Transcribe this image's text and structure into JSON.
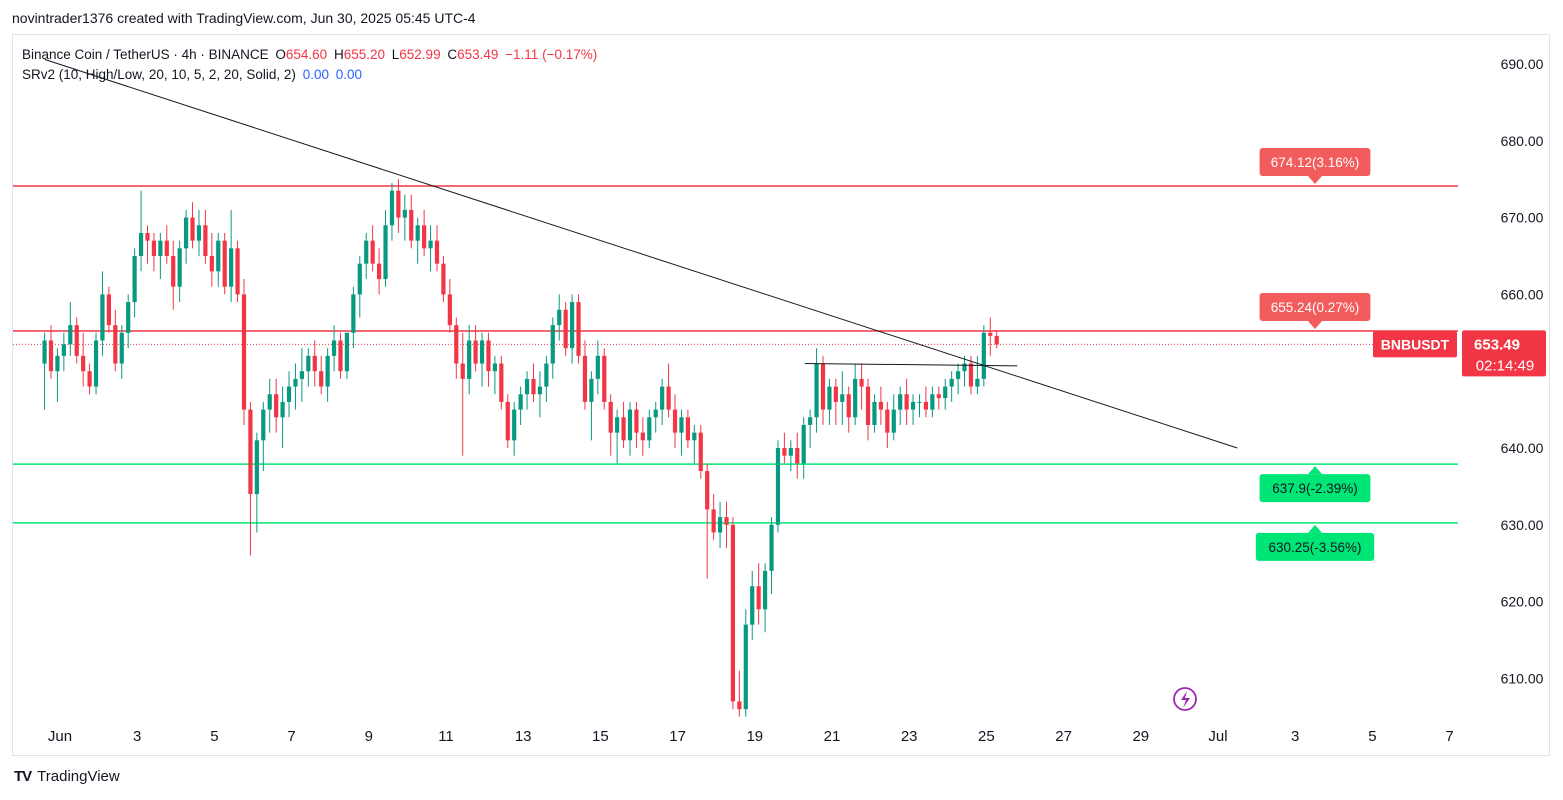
{
  "header": {
    "text": "novintrader1376 created with TradingView.com, Jun 30, 2025 05:45 UTC-4"
  },
  "legend": {
    "pair": "Binance Coin / TetherUS · 4h · BINANCE",
    "o_label": "O",
    "o": "654.60",
    "h_label": "H",
    "h": "655.20",
    "l_label": "L",
    "l": "652.99",
    "c_label": "C",
    "c": "653.49",
    "change": "−1.11 (−0.17%)",
    "indicator": "SRv2 (10, High/Low, 20, 10, 5, 2, 20, Solid, 2)",
    "ind_v1": "0.00",
    "ind_v2": "0.00"
  },
  "footer": {
    "brand": "TradingView",
    "logo_text": "TV"
  },
  "colors": {
    "up": "#089981",
    "down": "#f23645",
    "resistance": "#f23645",
    "support": "#00e676",
    "trendline": "#131722"
  },
  "chart_data": {
    "type": "candlestick",
    "symbol": "BNBUSDT",
    "timeframe": "4h",
    "ylim": [
      604,
      694
    ],
    "y_ticks": [
      "690.00",
      "680.00",
      "670.00",
      "660.00",
      "650.00",
      "640.00",
      "630.00",
      "620.00",
      "610.00"
    ],
    "x_ticks": [
      {
        "label": "Jun",
        "day": 1
      },
      {
        "label": "3",
        "day": 3
      },
      {
        "label": "5",
        "day": 5
      },
      {
        "label": "7",
        "day": 7
      },
      {
        "label": "9",
        "day": 9
      },
      {
        "label": "11",
        "day": 11
      },
      {
        "label": "13",
        "day": 13
      },
      {
        "label": "15",
        "day": 15
      },
      {
        "label": "17",
        "day": 17
      },
      {
        "label": "19",
        "day": 19
      },
      {
        "label": "21",
        "day": 21
      },
      {
        "label": "23",
        "day": 23
      },
      {
        "label": "25",
        "day": 25
      },
      {
        "label": "27",
        "day": 27
      },
      {
        "label": "29",
        "day": 29
      },
      {
        "label": "Jul",
        "day": 31
      },
      {
        "label": "3",
        "day": 33
      },
      {
        "label": "5",
        "day": 35
      },
      {
        "label": "7",
        "day": 37
      }
    ],
    "start_day": 0.6,
    "bars_per_day": 6,
    "ohlc": [
      [
        651.0,
        655.0,
        645.0,
        654.0
      ],
      [
        654.0,
        656.0,
        649.0,
        650.0
      ],
      [
        650.0,
        653.0,
        646.0,
        652.0
      ],
      [
        652.0,
        655.0,
        650.0,
        653.5
      ],
      [
        653.5,
        659.0,
        652.0,
        656.0
      ],
      [
        656.0,
        657.0,
        651.0,
        652.0
      ],
      [
        652.0,
        655.0,
        648.0,
        650.0
      ],
      [
        650.0,
        651.0,
        647.0,
        648.0
      ],
      [
        648.0,
        655.0,
        647.0,
        654.0
      ],
      [
        654.0,
        663.0,
        652.0,
        660.0
      ],
      [
        660.0,
        661.0,
        655.0,
        656.0
      ],
      [
        656.0,
        658.0,
        650.0,
        651.0
      ],
      [
        651.0,
        656.0,
        649.0,
        655.0
      ],
      [
        655.0,
        660.0,
        653.0,
        659.0
      ],
      [
        659.0,
        666.0,
        657.0,
        665.0
      ],
      [
        665.0,
        673.5,
        663.0,
        668.0
      ],
      [
        668.0,
        669.0,
        664.0,
        667.0
      ],
      [
        667.0,
        668.0,
        663.0,
        665.0
      ],
      [
        665.0,
        668.0,
        662.0,
        667.0
      ],
      [
        667.0,
        669.0,
        664.0,
        665.0
      ],
      [
        665.0,
        667.0,
        658.0,
        661.0
      ],
      [
        661.0,
        667.0,
        659.0,
        666.0
      ],
      [
        666.0,
        671.0,
        664.0,
        670.0
      ],
      [
        670.0,
        672.0,
        666.0,
        667.0
      ],
      [
        667.0,
        671.0,
        665.0,
        669.0
      ],
      [
        669.0,
        671.0,
        664.0,
        665.0
      ],
      [
        665.0,
        668.0,
        661.0,
        663.0
      ],
      [
        663.0,
        668.0,
        661.0,
        667.0
      ],
      [
        667.0,
        668.0,
        660.0,
        661.0
      ],
      [
        661.0,
        671.0,
        659.0,
        666.0
      ],
      [
        666.0,
        667.0,
        659.0,
        660.0
      ],
      [
        660.0,
        662.0,
        643.0,
        645.0
      ],
      [
        645.0,
        646.0,
        626.0,
        634.0
      ],
      [
        634.0,
        642.0,
        629.0,
        641.0
      ],
      [
        641.0,
        646.0,
        637.0,
        645.0
      ],
      [
        645.0,
        649.0,
        642.0,
        647.0
      ],
      [
        647.0,
        649.0,
        642.0,
        644.0
      ],
      [
        644.0,
        648.0,
        640.0,
        646.0
      ],
      [
        646.0,
        650.0,
        644.0,
        648.0
      ],
      [
        648.0,
        651.0,
        645.0,
        649.0
      ],
      [
        649.0,
        653.0,
        646.0,
        650.0
      ],
      [
        650.0,
        653.0,
        648.0,
        652.0
      ],
      [
        652.0,
        654.0,
        648.0,
        650.0
      ],
      [
        650.0,
        652.0,
        647.0,
        648.0
      ],
      [
        648.0,
        653.0,
        646.0,
        652.0
      ],
      [
        652.0,
        656.0,
        650.0,
        654.0
      ],
      [
        654.0,
        655.0,
        649.0,
        650.0
      ],
      [
        650.0,
        655.0,
        649.0,
        655.0
      ],
      [
        655.0,
        661.0,
        653.0,
        660.0
      ],
      [
        660.0,
        665.0,
        657.0,
        664.0
      ],
      [
        664.0,
        668.0,
        662.0,
        667.0
      ],
      [
        667.0,
        669.0,
        663.0,
        664.0
      ],
      [
        664.0,
        666.0,
        660.0,
        662.0
      ],
      [
        662.0,
        671.0,
        661.0,
        669.0
      ],
      [
        669.0,
        674.5,
        667.0,
        673.5
      ],
      [
        673.5,
        675.0,
        668.0,
        670.0
      ],
      [
        670.0,
        673.0,
        667.0,
        671.0
      ],
      [
        671.0,
        673.0,
        666.0,
        667.0
      ],
      [
        667.0,
        670.0,
        664.0,
        669.0
      ],
      [
        669.0,
        671.0,
        665.0,
        666.0
      ],
      [
        666.0,
        669.0,
        663.0,
        667.0
      ],
      [
        667.0,
        669.0,
        663.0,
        664.0
      ],
      [
        664.0,
        665.0,
        659.0,
        660.0
      ],
      [
        660.0,
        662.0,
        655.0,
        656.0
      ],
      [
        656.0,
        657.0,
        649.0,
        651.0
      ],
      [
        651.0,
        655.0,
        639.0,
        649.0
      ],
      [
        649.0,
        656.0,
        647.0,
        654.0
      ],
      [
        654.0,
        656.0,
        650.0,
        651.0
      ],
      [
        651.0,
        655.0,
        648.0,
        654.0
      ],
      [
        654.0,
        655.0,
        648.0,
        650.0
      ],
      [
        650.0,
        652.0,
        647.0,
        651.0
      ],
      [
        651.0,
        652.0,
        645.0,
        646.0
      ],
      [
        646.0,
        647.0,
        640.0,
        641.0
      ],
      [
        641.0,
        646.0,
        639.0,
        645.0
      ],
      [
        645.0,
        648.0,
        643.0,
        647.0
      ],
      [
        647.0,
        650.0,
        645.0,
        649.0
      ],
      [
        649.0,
        651.0,
        646.0,
        647.0
      ],
      [
        647.0,
        650.0,
        644.0,
        648.0
      ],
      [
        648.0,
        652.0,
        646.0,
        651.0
      ],
      [
        651.0,
        657.0,
        649.0,
        656.0
      ],
      [
        656.0,
        660.0,
        654.0,
        658.0
      ],
      [
        658.0,
        659.0,
        652.0,
        653.0
      ],
      [
        653.0,
        660.0,
        651.0,
        659.0
      ],
      [
        659.0,
        660.0,
        651.0,
        652.0
      ],
      [
        652.0,
        654.0,
        645.0,
        646.0
      ],
      [
        646.0,
        650.0,
        641.0,
        649.0
      ],
      [
        649.0,
        654.0,
        647.0,
        652.0
      ],
      [
        652.0,
        653.0,
        645.0,
        646.0
      ],
      [
        646.0,
        647.0,
        639.0,
        642.0
      ],
      [
        642.0,
        645.0,
        638.0,
        644.0
      ],
      [
        644.0,
        646.0,
        640.0,
        641.0
      ],
      [
        641.0,
        646.0,
        639.0,
        645.0
      ],
      [
        645.0,
        646.0,
        640.0,
        642.0
      ],
      [
        642.0,
        644.0,
        639.0,
        641.0
      ],
      [
        641.0,
        645.0,
        640.0,
        644.0
      ],
      [
        644.0,
        646.0,
        642.0,
        645.0
      ],
      [
        645.0,
        649.0,
        643.0,
        648.0
      ],
      [
        648.0,
        651.0,
        644.0,
        645.0
      ],
      [
        645.0,
        647.0,
        640.0,
        642.0
      ],
      [
        642.0,
        645.0,
        639.0,
        644.0
      ],
      [
        644.0,
        645.0,
        640.0,
        641.0
      ],
      [
        641.0,
        643.0,
        638.0,
        642.0
      ],
      [
        642.0,
        643.0,
        636.0,
        637.0
      ],
      [
        637.0,
        638.0,
        623.0,
        632.0
      ],
      [
        632.0,
        634.0,
        628.0,
        629.0
      ],
      [
        629.0,
        633.0,
        627.0,
        631.0
      ],
      [
        631.0,
        633.0,
        627.0,
        630.0
      ],
      [
        630.0,
        631.0,
        606.0,
        607.0
      ],
      [
        607.0,
        611.0,
        605.0,
        606.0
      ],
      [
        606.0,
        619.0,
        605.0,
        617.0
      ],
      [
        617.0,
        624.0,
        615.0,
        622.0
      ],
      [
        622.0,
        625.0,
        617.0,
        619.0
      ],
      [
        619.0,
        625.0,
        616.0,
        624.0
      ],
      [
        624.0,
        631.0,
        621.0,
        630.0
      ],
      [
        630.0,
        641.0,
        629.0,
        640.0
      ],
      [
        640.0,
        642.0,
        638.0,
        639.0
      ],
      [
        639.0,
        641.0,
        637.0,
        640.0
      ],
      [
        640.0,
        642.0,
        636.0,
        638.0
      ],
      [
        638.0,
        644.0,
        636.0,
        643.0
      ],
      [
        643.0,
        645.0,
        640.0,
        644.0
      ],
      [
        644.0,
        653.0,
        642.0,
        651.0
      ],
      [
        651.0,
        652.0,
        643.0,
        645.0
      ],
      [
        645.0,
        649.0,
        643.0,
        648.0
      ],
      [
        648.0,
        649.0,
        643.0,
        646.0
      ],
      [
        646.0,
        650.0,
        643.0,
        647.0
      ],
      [
        647.0,
        648.0,
        642.0,
        644.0
      ],
      [
        644.0,
        651.0,
        643.0,
        649.0
      ],
      [
        649.0,
        651.0,
        645.0,
        648.0
      ],
      [
        648.0,
        649.0,
        641.0,
        643.0
      ],
      [
        643.0,
        647.0,
        642.0,
        646.0
      ],
      [
        646.0,
        648.0,
        643.0,
        645.0
      ],
      [
        645.0,
        646.0,
        640.0,
        642.0
      ],
      [
        642.0,
        647.0,
        641.0,
        645.0
      ],
      [
        645.0,
        648.0,
        643.0,
        647.0
      ],
      [
        647.0,
        649.0,
        643.0,
        645.0
      ],
      [
        645.0,
        647.0,
        643.0,
        646.0
      ],
      [
        646.0,
        647.0,
        644.0,
        646.0
      ],
      [
        646.0,
        648.0,
        644.0,
        645.0
      ],
      [
        645.0,
        648.0,
        644.0,
        647.0
      ],
      [
        647.0,
        648.0,
        645.0,
        646.5
      ],
      [
        646.5,
        649.0,
        645.0,
        648.0
      ],
      [
        648.0,
        650.0,
        646.0,
        649.0
      ],
      [
        649.0,
        651.0,
        647.0,
        650.0
      ],
      [
        650.0,
        652.0,
        648.0,
        651.0
      ],
      [
        651.0,
        652.0,
        647.0,
        648.0
      ],
      [
        648.0,
        652.0,
        647.0,
        649.0
      ],
      [
        649.0,
        656.0,
        648.0,
        655.0
      ],
      [
        655.0,
        657.0,
        652.0,
        654.6
      ],
      [
        654.6,
        655.2,
        652.99,
        653.49
      ]
    ],
    "hlines": [
      {
        "name": "resistance-1",
        "value": 674.12,
        "label": "674.12(3.16%)",
        "kind": "resistance"
      },
      {
        "name": "resistance-2",
        "value": 655.24,
        "label": "655.24(0.27%)",
        "kind": "resistance"
      },
      {
        "name": "support-1",
        "value": 637.9,
        "label": "637.9(-2.39%)",
        "kind": "support"
      },
      {
        "name": "support-2",
        "value": 630.25,
        "label": "630.25(-3.56%)",
        "kind": "support"
      }
    ],
    "trendline": {
      "from": {
        "day": 0.6,
        "price": 690.6
      },
      "to": {
        "day": 31.5,
        "price": 640.0
      }
    },
    "segment": {
      "from": {
        "day": 20.3,
        "price": 651.0
      },
      "to": {
        "day": 25.8,
        "price": 650.7
      }
    },
    "last_price": {
      "value": 653.49,
      "label": "653.49",
      "countdown": "02:14:49",
      "symbol_label": "BNBUSDT"
    }
  }
}
